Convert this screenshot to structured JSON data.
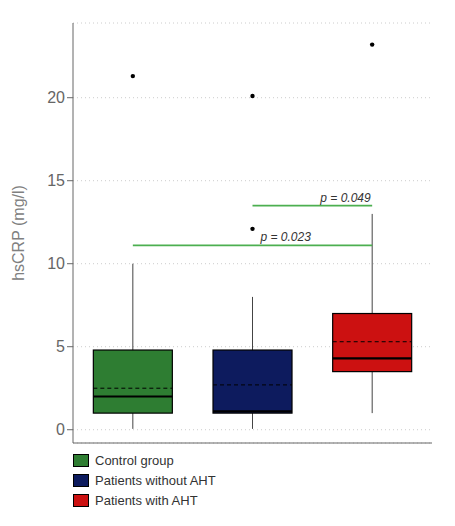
{
  "chart_data": {
    "type": "box",
    "ylabel": "hsCRP (mg/l)",
    "ylim": [
      -0.8,
      24.5
    ],
    "yticks": [
      0,
      5,
      10,
      15,
      20
    ],
    "grid": true,
    "legend": "bottom",
    "tick_labels": "y",
    "series": [
      {
        "name": "Control group",
        "color": "#2e7d32",
        "whisker_lo": 0.05,
        "q1": 1.0,
        "median": 2.0,
        "mean": 2.5,
        "q3": 4.8,
        "whisker_hi": 10.0,
        "outliers": [
          21.3
        ]
      },
      {
        "name": "Patients without AHT",
        "color": "#0d1b5e",
        "whisker_lo": 0.05,
        "q1": 1.0,
        "median": 1.1,
        "mean": 2.7,
        "q3": 4.8,
        "whisker_hi": 8.0,
        "outliers": [
          20.1,
          12.1
        ]
      },
      {
        "name": "Patients with AHT",
        "color": "#cc1111",
        "whisker_lo": 1.0,
        "q1": 3.5,
        "median": 4.3,
        "mean": 5.3,
        "q3": 7.0,
        "whisker_hi": 13.0,
        "outliers": [
          23.2
        ]
      }
    ],
    "annotations": [
      {
        "from": "Control group",
        "to": "Patients with AHT",
        "y": 11.1,
        "label": "p = 0.023",
        "color": "#4caf50"
      },
      {
        "from": "Patients without AHT",
        "to": "Patients with AHT",
        "y": 13.5,
        "label": "p = 0.049",
        "color": "#4caf50"
      }
    ]
  }
}
